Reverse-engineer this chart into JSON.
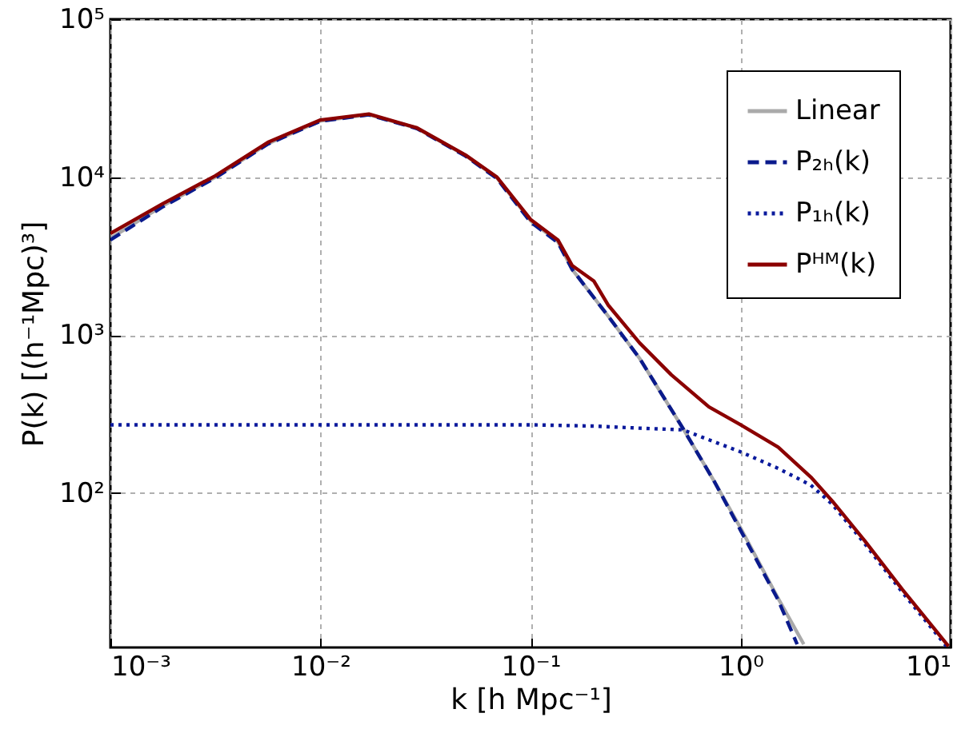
{
  "chart_data": {
    "type": "line",
    "xlabel": "k [h Mpc⁻¹]",
    "ylabel": "P(k) [(h⁻¹Mpc)³]",
    "log": "xy",
    "grid": true,
    "legend": "top right",
    "xlim": [
      0.001,
      10
    ],
    "ylim": [
      10.5,
      100000
    ],
    "xticks": [
      {
        "value": 0.001,
        "label": "10⁻³"
      },
      {
        "value": 0.01,
        "label": "10⁻²"
      },
      {
        "value": 0.1,
        "label": "10⁻¹"
      },
      {
        "value": 1,
        "label": "10⁰"
      },
      {
        "value": 10,
        "label": "10¹"
      }
    ],
    "yticks": [
      {
        "value": 100,
        "label": "10²"
      },
      {
        "value": 1000,
        "label": "10³"
      },
      {
        "value": 10000,
        "label": "10⁴"
      },
      {
        "value": 100000,
        "label": "10⁵"
      }
    ],
    "series": [
      {
        "name": "Linear",
        "color": "#aaaaaa",
        "line_style": "solid",
        "x": [
          0.001,
          0.00178,
          0.00316,
          0.00562,
          0.01,
          0.017,
          0.0288,
          0.049,
          0.0692,
          0.1,
          0.135,
          0.158,
          0.234,
          0.331,
          0.531,
          0.753,
          1,
          1.51,
          2
        ],
        "values": [
          4100,
          6600,
          10000,
          16300,
          22700,
          24900,
          20400,
          13700,
          9900,
          5300,
          3900,
          2600,
          1320,
          710,
          257,
          117,
          60,
          21.5,
          11
        ]
      },
      {
        "name": "P₂ₕ(k)",
        "color": "#0a1a8c",
        "line_style": "dashed",
        "x": [
          0.001,
          0.00178,
          0.00316,
          0.00562,
          0.01,
          0.017,
          0.0288,
          0.049,
          0.0692,
          0.1,
          0.135,
          0.158,
          0.234,
          0.331,
          0.531,
          0.753,
          1,
          1.51,
          1.86
        ],
        "values": [
          4000,
          6500,
          9900,
          16200,
          22600,
          24800,
          20300,
          13600,
          9800,
          5200,
          3850,
          2600,
          1320,
          710,
          257,
          117,
          58,
          21,
          11
        ]
      },
      {
        "name": "P₁ₕ(k)",
        "color": "#0a1a9c",
        "line_style": "dotted",
        "x": [
          0.001,
          0.01,
          0.1,
          0.2,
          0.331,
          0.531,
          1,
          1.51,
          2.16,
          2.73,
          3.89,
          5.89,
          9.55
        ],
        "values": [
          270,
          270,
          270,
          265,
          257,
          251,
          182,
          143,
          112,
          85,
          48,
          23.5,
          10.7
        ]
      },
      {
        "name": "Pᴴᴹ(k)",
        "color": "#8b0000",
        "line_style": "solid",
        "x": [
          0.001,
          0.00178,
          0.00316,
          0.00562,
          0.01,
          0.017,
          0.0288,
          0.049,
          0.0692,
          0.1,
          0.135,
          0.158,
          0.2,
          0.234,
          0.331,
          0.468,
          0.708,
          1,
          1.51,
          2.16,
          2.73,
          3.89,
          5.89,
          9.77
        ],
        "values": [
          4400,
          6800,
          10200,
          16600,
          23000,
          25100,
          20500,
          13800,
          10000,
          5400,
          4000,
          2750,
          2200,
          1550,
          890,
          560,
          350,
          270,
          195,
          126,
          89,
          50,
          24.5,
          10.7
        ]
      }
    ]
  }
}
